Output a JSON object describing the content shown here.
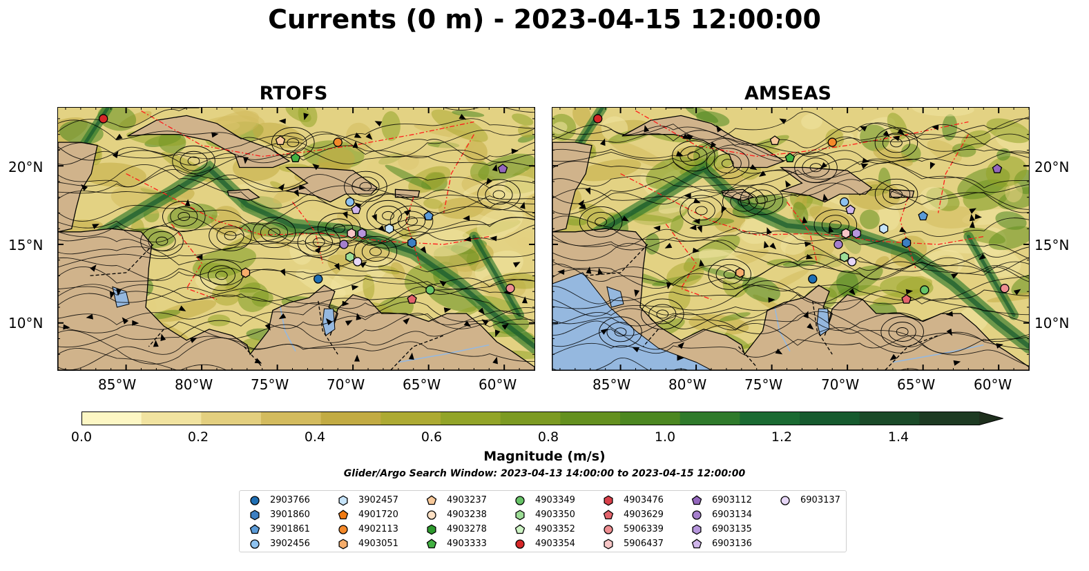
{
  "title": "Currents (0 m) - 2023-04-15 12:00:00",
  "panels": [
    {
      "title": "RTOFS"
    },
    {
      "title": "AMSEAS"
    }
  ],
  "lat_labels": [
    "20°N",
    "15°N",
    "10°N"
  ],
  "lon_labels": [
    "85°W",
    "80°W",
    "75°W",
    "70°W",
    "65°W",
    "60°W"
  ],
  "colorbar": {
    "label": "Magnitude (m/s)",
    "ticks": [
      "0.0",
      "0.2",
      "0.4",
      "0.6",
      "0.8",
      "1.0",
      "1.2",
      "1.4"
    ],
    "range": [
      0,
      1.5
    ],
    "extend": "max",
    "colors": [
      "#fdf7c4",
      "#f1e3a0",
      "#e3cf7f",
      "#d3bb5e",
      "#c2ab43",
      "#adaa33",
      "#92a428",
      "#7c9a22",
      "#64901f",
      "#4c8721",
      "#2f7a2b",
      "#1a6a32",
      "#165a2e",
      "#1a4a28",
      "#1d3a22",
      "#1e2f1d"
    ]
  },
  "search_window": "Glider/Argo Search Window: 2023-04-13 14:00:00 to 2023-04-15 12:00:00",
  "legend": [
    {
      "id": "2903766",
      "marker": "circle",
      "color": "#1f6fb4"
    },
    {
      "id": "3901860",
      "marker": "hexagon",
      "color": "#3d7fc2"
    },
    {
      "id": "3901861",
      "marker": "pentagon",
      "color": "#5b9bd8"
    },
    {
      "id": "3902456",
      "marker": "circle",
      "color": "#8ec2ef"
    },
    {
      "id": "3902457",
      "marker": "hexagon",
      "color": "#c6e4fa"
    },
    {
      "id": "4901720",
      "marker": "pentagon",
      "color": "#f07a12"
    },
    {
      "id": "4902113",
      "marker": "circle",
      "color": "#f4892a"
    },
    {
      "id": "4903051",
      "marker": "hexagon",
      "color": "#f6ad6b"
    },
    {
      "id": "4903237",
      "marker": "pentagon",
      "color": "#f8c99a"
    },
    {
      "id": "4903238",
      "marker": "circle",
      "color": "#fde0c4"
    },
    {
      "id": "4903278",
      "marker": "hexagon",
      "color": "#2d9a2d"
    },
    {
      "id": "4903333",
      "marker": "pentagon",
      "color": "#42b042"
    },
    {
      "id": "4903349",
      "marker": "circle",
      "color": "#67c367"
    },
    {
      "id": "4903350",
      "marker": "hexagon",
      "color": "#9ddd96"
    },
    {
      "id": "4903352",
      "marker": "pentagon",
      "color": "#cdf3c4"
    },
    {
      "id": "4903354",
      "marker": "circle",
      "color": "#d62728"
    },
    {
      "id": "4903476",
      "marker": "hexagon",
      "color": "#d9404a"
    },
    {
      "id": "4903629",
      "marker": "pentagon",
      "color": "#e3646c"
    },
    {
      "id": "5906339",
      "marker": "circle",
      "color": "#ee8e91"
    },
    {
      "id": "5906437",
      "marker": "hexagon",
      "color": "#f7c6c6"
    },
    {
      "id": "6903112",
      "marker": "pentagon",
      "color": "#9467bd"
    },
    {
      "id": "6903134",
      "marker": "circle",
      "color": "#a57fcc"
    },
    {
      "id": "6903135",
      "marker": "hexagon",
      "color": "#b696dc"
    },
    {
      "id": "6903136",
      "marker": "pentagon",
      "color": "#cfb5ea"
    },
    {
      "id": "6903137",
      "marker": "circle",
      "color": "#e6d6f6"
    }
  ],
  "floats": [
    {
      "id": "4903354",
      "lon": -86.5,
      "lat": 23.0
    },
    {
      "id": "4903237",
      "lon": -74.8,
      "lat": 21.6
    },
    {
      "id": "4902113",
      "lon": -71.0,
      "lat": 21.5
    },
    {
      "id": "4903333",
      "lon": -73.8,
      "lat": 20.5
    },
    {
      "id": "6903112",
      "lon": -60.1,
      "lat": 19.8
    },
    {
      "id": "3902456",
      "lon": -70.2,
      "lat": 17.7
    },
    {
      "id": "6903136",
      "lon": -69.8,
      "lat": 17.2
    },
    {
      "id": "3901861",
      "lon": -65.0,
      "lat": 16.8
    },
    {
      "id": "3902457",
      "lon": -67.6,
      "lat": 16.0
    },
    {
      "id": "5906437",
      "lon": -70.1,
      "lat": 15.7
    },
    {
      "id": "6903135",
      "lon": -69.4,
      "lat": 15.7
    },
    {
      "id": "3901860",
      "lon": -66.1,
      "lat": 15.1
    },
    {
      "id": "6903134",
      "lon": -70.6,
      "lat": 15.0
    },
    {
      "id": "4903350",
      "lon": -70.2,
      "lat": 14.2
    },
    {
      "id": "6903137",
      "lon": -69.7,
      "lat": 13.9
    },
    {
      "id": "4903051",
      "lon": -77.1,
      "lat": 13.2
    },
    {
      "id": "2903766",
      "lon": -72.3,
      "lat": 12.8
    },
    {
      "id": "4903349",
      "lon": -64.9,
      "lat": 12.1
    },
    {
      "id": "5906339",
      "lon": -59.6,
      "lat": 12.2
    },
    {
      "id": "4903629",
      "lon": -66.1,
      "lat": 11.5
    }
  ],
  "map_extent": {
    "lon": [
      -89.5,
      -58.0
    ],
    "lat": [
      7.0,
      23.7
    ]
  }
}
